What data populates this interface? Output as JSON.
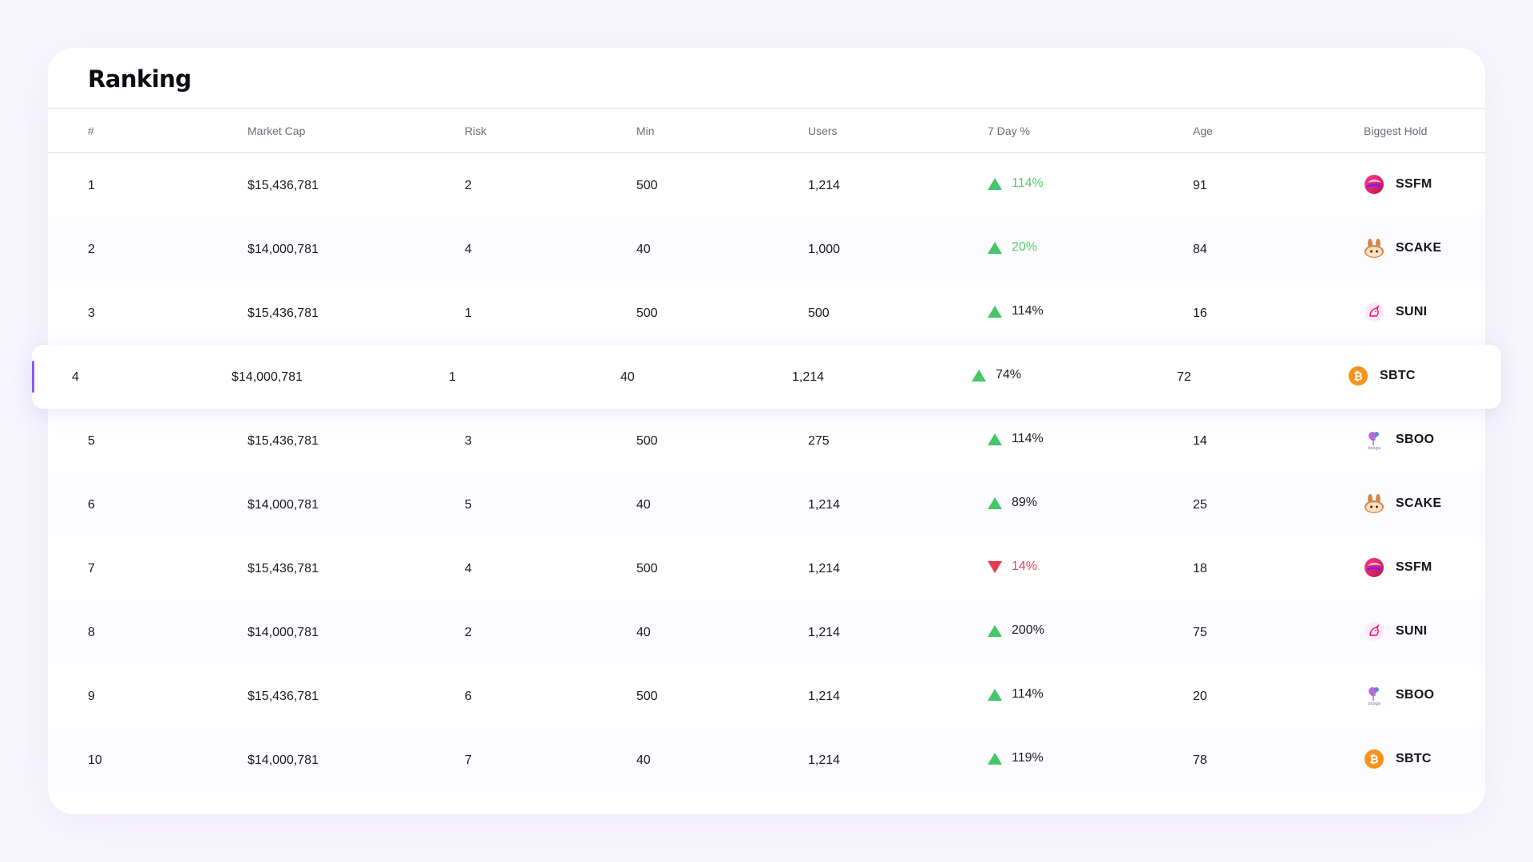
{
  "title": "Ranking",
  "columns": [
    "#",
    "Market Cap",
    "Risk",
    "Min",
    "Users",
    "7 Day %",
    "Age",
    "Biggest Hold"
  ],
  "rows": [
    {
      "num": "1",
      "cap": "$15,436,781",
      "risk": "2",
      "min": "500",
      "users": "1,214",
      "trend": "up",
      "pct": "114%",
      "pct_color": "green",
      "age": "91",
      "hold": "SSFM",
      "hold_icon": "ssfm-icon"
    },
    {
      "num": "2",
      "cap": "$14,000,781",
      "risk": "4",
      "min": "40",
      "users": "1,000",
      "trend": "up",
      "pct": "20%",
      "pct_color": "green",
      "age": "84",
      "hold": "SCAKE",
      "hold_icon": "cake-bunny-icon"
    },
    {
      "num": "3",
      "cap": "$15,436,781",
      "risk": "1",
      "min": "500",
      "users": "500",
      "trend": "up",
      "pct": "114%",
      "pct_color": "dark",
      "age": "16",
      "hold": "SUNI",
      "hold_icon": "unicorn-icon"
    },
    {
      "num": "4",
      "cap": "$14,000,781",
      "risk": "1",
      "min": "40",
      "users": "1,214",
      "trend": "up",
      "pct": "74%",
      "pct_color": "dark",
      "age": "72",
      "hold": "SBTC",
      "hold_icon": "bitcoin-icon",
      "selected": true
    },
    {
      "num": "5",
      "cap": "$15,436,781",
      "risk": "3",
      "min": "500",
      "users": "275",
      "trend": "up",
      "pct": "114%",
      "pct_color": "dark",
      "age": "14",
      "hold": "SBOO",
      "hold_icon": "boo-icon"
    },
    {
      "num": "6",
      "cap": "$14,000,781",
      "risk": "5",
      "min": "40",
      "users": "1,214",
      "trend": "up",
      "pct": "89%",
      "pct_color": "dark",
      "age": "25",
      "hold": "SCAKE",
      "hold_icon": "cake-bunny-icon"
    },
    {
      "num": "7",
      "cap": "$15,436,781",
      "risk": "4",
      "min": "500",
      "users": "1,214",
      "trend": "down",
      "pct": "14%",
      "pct_color": "red",
      "age": "18",
      "hold": "SSFM",
      "hold_icon": "ssfm-icon"
    },
    {
      "num": "8",
      "cap": "$14,000,781",
      "risk": "2",
      "min": "40",
      "users": "1,214",
      "trend": "up",
      "pct": "200%",
      "pct_color": "dark",
      "age": "75",
      "hold": "SUNI",
      "hold_icon": "unicorn-icon"
    },
    {
      "num": "9",
      "cap": "$15,436,781",
      "risk": "6",
      "min": "500",
      "users": "1,214",
      "trend": "up",
      "pct": "114%",
      "pct_color": "dark",
      "age": "20",
      "hold": "SBOO",
      "hold_icon": "boo-icon"
    },
    {
      "num": "10",
      "cap": "$14,000,781",
      "risk": "7",
      "min": "40",
      "users": "1,214",
      "trend": "up",
      "pct": "119%",
      "pct_color": "dark",
      "age": "78",
      "hold": "SBTC",
      "hold_icon": "bitcoin-icon"
    }
  ],
  "colors": {
    "up": "#44c66a",
    "down": "#ea3b4f",
    "accent": "#8a5cf0"
  }
}
